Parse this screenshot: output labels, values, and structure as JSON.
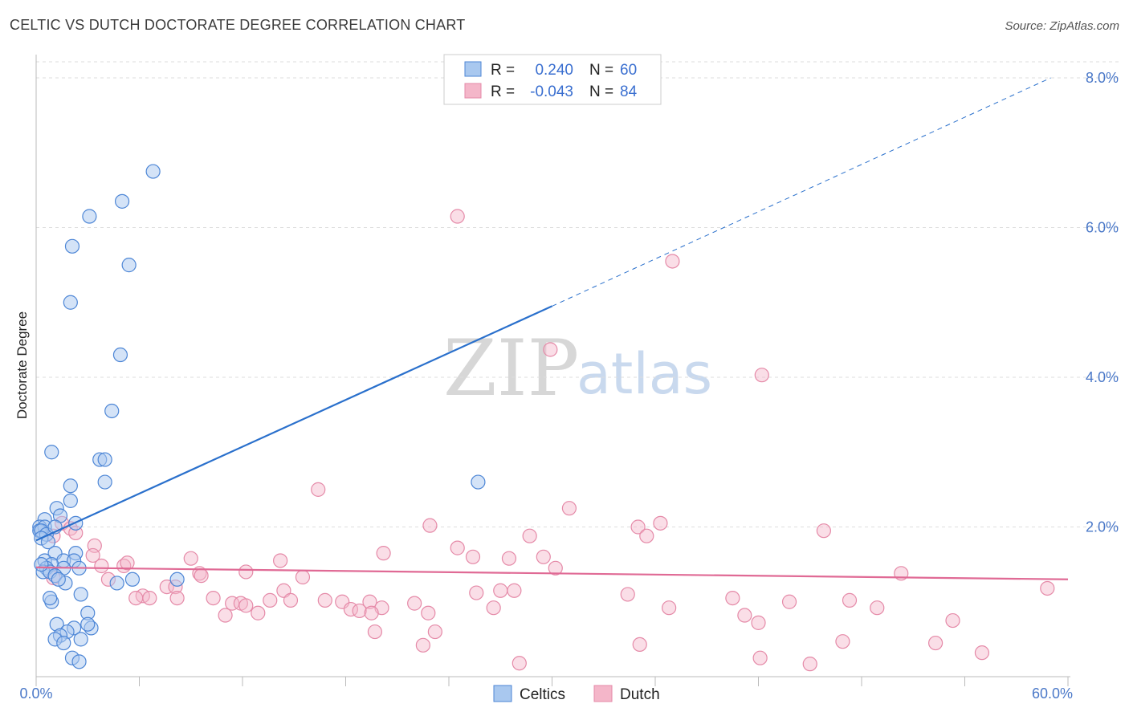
{
  "title": "CELTIC VS DUTCH DOCTORATE DEGREE CORRELATION CHART",
  "source": "Source: ZipAtlas.com",
  "watermark": {
    "part1": "ZIP",
    "part2": "atlas"
  },
  "colors": {
    "celtic_fill": "#a9c8ef",
    "celtic_stroke": "#4d86d6",
    "celtic_line": "#2a70cc",
    "dutch_fill": "#f4b6c9",
    "dutch_stroke": "#e58aa8",
    "dutch_line": "#e06a95",
    "tick": "#4a78c8",
    "grid": "#dddddd"
  },
  "legend": {
    "r_label": "R =",
    "n_label": "N =",
    "celtic": {
      "r": "0.240",
      "n": "60"
    },
    "dutch": {
      "r": "-0.043",
      "n": "84"
    }
  },
  "chart_data": {
    "type": "scatter",
    "title": "CELTIC VS DUTCH DOCTORATE DEGREE CORRELATION CHART",
    "xlabel": "",
    "ylabel": "Doctorate Degree",
    "xlim": [
      0,
      60
    ],
    "ylim": [
      0,
      8.4
    ],
    "x_tick_labels": [
      "0.0%",
      "60.0%"
    ],
    "y_ticks": [
      2,
      4,
      6,
      8
    ],
    "y_tick_labels": [
      "2.0%",
      "4.0%",
      "6.0%",
      "8.0%"
    ],
    "legend_bottom": [
      "Celtics",
      "Dutch"
    ],
    "series": [
      {
        "name": "Celtics",
        "r": 0.24,
        "n": 60,
        "trend": {
          "x0": 0,
          "y0": 1.82,
          "x1": 30,
          "y1": 4.95,
          "dash_x1": 59,
          "dash_y1": 8.0
        },
        "points": [
          [
            6.8,
            6.75
          ],
          [
            5.0,
            6.35
          ],
          [
            3.1,
            6.15
          ],
          [
            2.1,
            5.75
          ],
          [
            5.4,
            5.5
          ],
          [
            2.0,
            5.0
          ],
          [
            4.9,
            4.3
          ],
          [
            4.4,
            3.55
          ],
          [
            0.9,
            3.0
          ],
          [
            3.7,
            2.9
          ],
          [
            4.0,
            2.9
          ],
          [
            4.0,
            2.6
          ],
          [
            2.0,
            2.55
          ],
          [
            2.0,
            2.35
          ],
          [
            1.2,
            2.25
          ],
          [
            1.4,
            2.15
          ],
          [
            0.5,
            2.1
          ],
          [
            2.3,
            2.05
          ],
          [
            0.2,
            2.0
          ],
          [
            0.5,
            2.0
          ],
          [
            0.2,
            1.95
          ],
          [
            0.3,
            1.95
          ],
          [
            0.6,
            1.9
          ],
          [
            0.3,
            1.85
          ],
          [
            0.7,
            1.8
          ],
          [
            1.1,
            2.0
          ],
          [
            1.1,
            1.65
          ],
          [
            2.3,
            1.65
          ],
          [
            0.5,
            1.55
          ],
          [
            1.6,
            1.55
          ],
          [
            2.2,
            1.55
          ],
          [
            0.9,
            1.5
          ],
          [
            0.6,
            1.45
          ],
          [
            1.6,
            1.45
          ],
          [
            2.5,
            1.45
          ],
          [
            0.4,
            1.4
          ],
          [
            0.8,
            1.4
          ],
          [
            1.1,
            1.35
          ],
          [
            5.6,
            1.3
          ],
          [
            8.2,
            1.3
          ],
          [
            1.7,
            1.25
          ],
          [
            4.7,
            1.25
          ],
          [
            2.6,
            1.1
          ],
          [
            0.9,
            1.0
          ],
          [
            3.0,
            0.85
          ],
          [
            1.2,
            0.7
          ],
          [
            2.2,
            0.65
          ],
          [
            3.2,
            0.65
          ],
          [
            1.8,
            0.6
          ],
          [
            3.0,
            0.7
          ],
          [
            1.4,
            0.55
          ],
          [
            1.1,
            0.5
          ],
          [
            2.6,
            0.5
          ],
          [
            1.6,
            0.45
          ],
          [
            2.1,
            0.25
          ],
          [
            2.5,
            0.2
          ],
          [
            25.7,
            2.6
          ],
          [
            0.8,
            1.05
          ],
          [
            0.3,
            1.5
          ],
          [
            1.3,
            1.3
          ]
        ]
      },
      {
        "name": "Dutch",
        "r": -0.043,
        "n": 84,
        "trend": {
          "x0": 0,
          "y0": 1.46,
          "x1": 60,
          "y1": 1.3
        },
        "points": [
          [
            24.5,
            6.15
          ],
          [
            37.0,
            5.55
          ],
          [
            29.9,
            4.37
          ],
          [
            42.2,
            4.03
          ],
          [
            16.4,
            2.5
          ],
          [
            31.0,
            2.25
          ],
          [
            22.9,
            2.02
          ],
          [
            36.3,
            2.05
          ],
          [
            35.0,
            2.0
          ],
          [
            45.8,
            1.95
          ],
          [
            35.5,
            1.88
          ],
          [
            28.7,
            1.88
          ],
          [
            1.5,
            2.05
          ],
          [
            2.0,
            1.98
          ],
          [
            2.3,
            1.92
          ],
          [
            1.0,
            1.88
          ],
          [
            3.4,
            1.75
          ],
          [
            3.3,
            1.62
          ],
          [
            24.5,
            1.72
          ],
          [
            20.2,
            1.65
          ],
          [
            9.0,
            1.58
          ],
          [
            14.2,
            1.55
          ],
          [
            25.4,
            1.6
          ],
          [
            27.5,
            1.58
          ],
          [
            29.5,
            1.6
          ],
          [
            3.8,
            1.48
          ],
          [
            5.1,
            1.48
          ],
          [
            5.3,
            1.52
          ],
          [
            30.2,
            1.45
          ],
          [
            12.2,
            1.4
          ],
          [
            9.5,
            1.38
          ],
          [
            9.6,
            1.35
          ],
          [
            15.5,
            1.33
          ],
          [
            4.2,
            1.3
          ],
          [
            7.6,
            1.2
          ],
          [
            8.1,
            1.2
          ],
          [
            14.4,
            1.15
          ],
          [
            25.6,
            1.12
          ],
          [
            27.0,
            1.15
          ],
          [
            27.8,
            1.15
          ],
          [
            6.2,
            1.08
          ],
          [
            5.8,
            1.05
          ],
          [
            6.6,
            1.05
          ],
          [
            8.2,
            1.05
          ],
          [
            10.3,
            1.05
          ],
          [
            13.6,
            1.02
          ],
          [
            14.8,
            1.02
          ],
          [
            16.8,
            1.02
          ],
          [
            17.8,
            1.0
          ],
          [
            19.4,
            1.0
          ],
          [
            11.4,
            0.98
          ],
          [
            11.9,
            0.98
          ],
          [
            22.0,
            0.98
          ],
          [
            20.1,
            0.92
          ],
          [
            18.3,
            0.9
          ],
          [
            18.8,
            0.88
          ],
          [
            26.6,
            0.92
          ],
          [
            12.2,
            0.95
          ],
          [
            11.0,
            0.82
          ],
          [
            12.9,
            0.85
          ],
          [
            19.5,
            0.85
          ],
          [
            22.8,
            0.85
          ],
          [
            34.4,
            1.1
          ],
          [
            36.8,
            0.92
          ],
          [
            40.5,
            1.05
          ],
          [
            41.2,
            0.82
          ],
          [
            42.0,
            0.72
          ],
          [
            43.8,
            1.0
          ],
          [
            47.3,
            1.02
          ],
          [
            48.9,
            0.92
          ],
          [
            50.3,
            1.38
          ],
          [
            53.3,
            0.75
          ],
          [
            58.8,
            1.18
          ],
          [
            19.7,
            0.6
          ],
          [
            23.2,
            0.6
          ],
          [
            22.5,
            0.42
          ],
          [
            35.1,
            0.43
          ],
          [
            46.9,
            0.47
          ],
          [
            52.3,
            0.45
          ],
          [
            55.0,
            0.32
          ],
          [
            28.1,
            0.18
          ],
          [
            42.1,
            0.25
          ],
          [
            45.0,
            0.17
          ],
          [
            1.0,
            1.32
          ]
        ]
      }
    ]
  }
}
